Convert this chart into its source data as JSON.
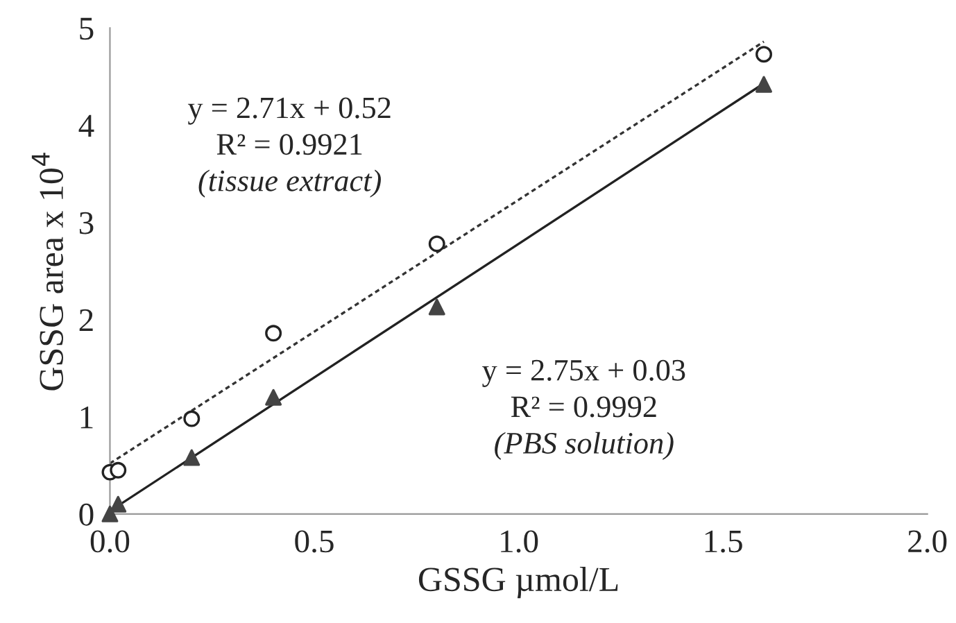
{
  "chart_data": {
    "type": "scatter",
    "xlabel": "GSSG µmol/L",
    "ylabel": "GSSG area x 10$^{4}$",
    "xlim": [
      0,
      2.0
    ],
    "ylim": [
      0,
      5
    ],
    "xticks": [
      {
        "value": 0,
        "label": "0.0"
      },
      {
        "value": 0.5,
        "label": "0.5"
      },
      {
        "value": 1,
        "label": "1.0"
      },
      {
        "value": 1.5,
        "label": "1.5"
      },
      {
        "value": 2,
        "label": "2.0"
      }
    ],
    "yticks": [
      0,
      1,
      2,
      3,
      4,
      5
    ],
    "grid": false,
    "series": [
      {
        "marker": "circle",
        "color": "#222222",
        "x": [
          0,
          0.02,
          0.2,
          0.4,
          0.8,
          1.6
        ],
        "values": [
          0.43,
          0.45,
          0.98,
          1.86,
          2.78,
          4.73
        ]
      },
      {
        "marker": "triangle",
        "color": "#444444",
        "x": [
          0,
          0.02,
          0.2,
          0.4,
          0.8,
          1.6
        ],
        "values": [
          0.0,
          0.1,
          0.58,
          1.2,
          2.13,
          4.42
        ]
      },
      {
        "type": "line",
        "line_style": "dashed",
        "color": "#333333",
        "x": [
          0,
          1.6
        ],
        "values": [
          0.52,
          4.86
        ]
      },
      {
        "type": "line",
        "line_style": "solid",
        "color": "#222222",
        "x": [
          0,
          1.6
        ],
        "values": [
          0.03,
          4.43
        ]
      }
    ],
    "annotations": [
      "y = 2.71x + 0.52",
      "R² = 0.9921",
      "(tissue extract)",
      "y = 2.75x + 0.03",
      "R² = 0.9992",
      "(PBS solution)"
    ]
  }
}
